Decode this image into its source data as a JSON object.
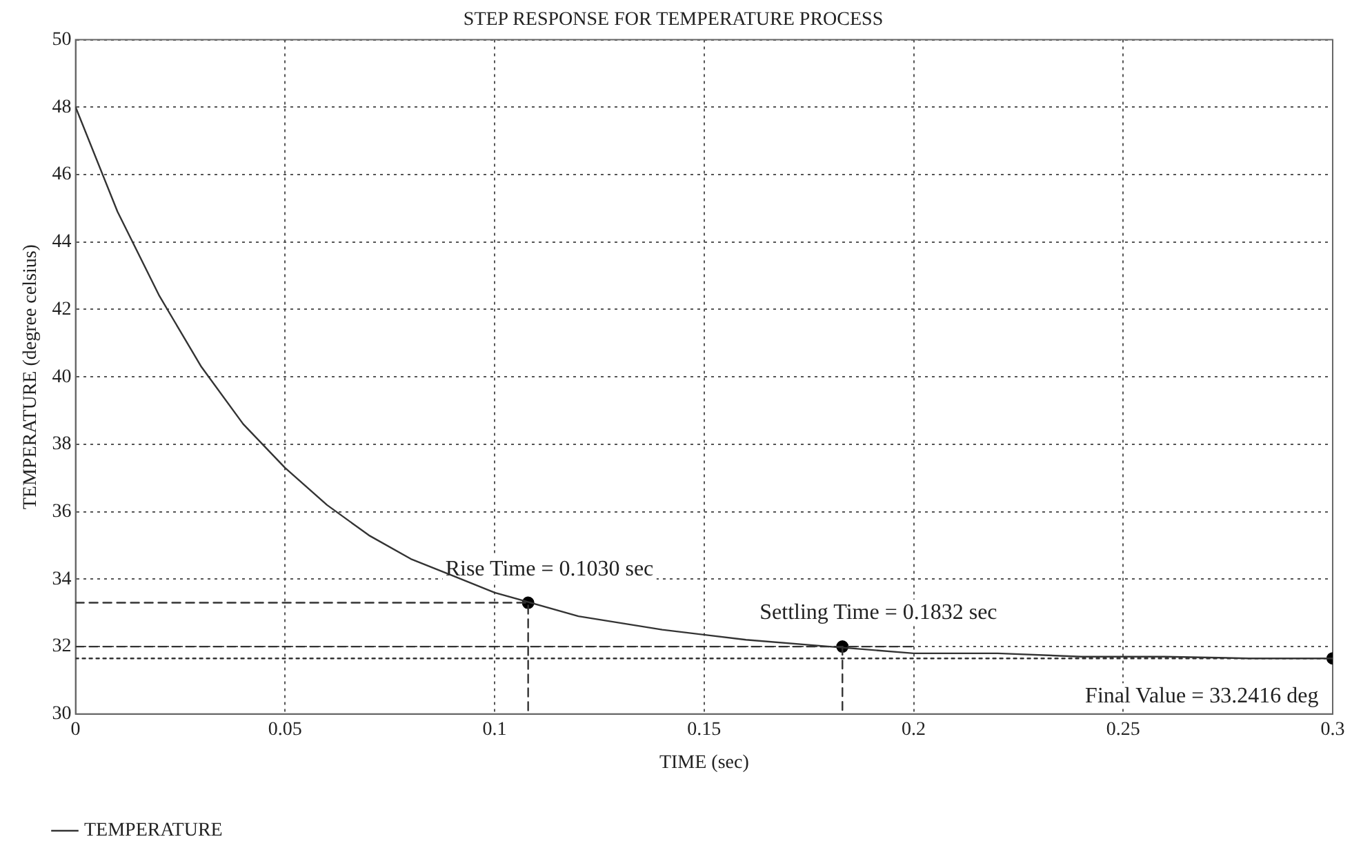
{
  "chart_data": {
    "type": "line",
    "title": "STEP RESPONSE FOR TEMPERATURE PROCESS",
    "xlabel": "TIME (sec)",
    "ylabel": "TEMPERATURE (degree celsius)",
    "xlim": [
      0,
      0.3
    ],
    "xticks": [
      0,
      0.05,
      0.1,
      0.15,
      0.2,
      0.25,
      0.3
    ],
    "ylim": [
      30,
      50
    ],
    "yticks": [
      30,
      32,
      34,
      36,
      38,
      40,
      42,
      44,
      46,
      48,
      50
    ],
    "grid": true,
    "legend": "bottom",
    "marker": "none",
    "line_style": "solid",
    "series": [
      {
        "name": "TEMPERATURE",
        "color": "#333333",
        "x": [
          0,
          0.01,
          0.02,
          0.03,
          0.04,
          0.05,
          0.06,
          0.07,
          0.08,
          0.09,
          0.1,
          0.12,
          0.14,
          0.16,
          0.18,
          0.2,
          0.22,
          0.24,
          0.26,
          0.28,
          0.3
        ],
        "values": [
          48.0,
          44.9,
          42.4,
          40.3,
          38.6,
          37.3,
          36.2,
          35.3,
          34.6,
          34.1,
          33.6,
          32.9,
          32.5,
          32.2,
          32.0,
          31.8,
          31.8,
          31.7,
          31.7,
          31.65,
          31.65
        ]
      },
      {
        "type": "line",
        "line_style": "dashed",
        "color": "#333333",
        "x": [
          0,
          0.108,
          0.108
        ],
        "values": [
          33.3,
          33.3,
          30
        ]
      },
      {
        "type": "line",
        "line_style": "dashed",
        "color": "#333333",
        "x": [
          0,
          0.2
        ],
        "values": [
          32.0,
          32.0
        ]
      },
      {
        "type": "line",
        "line_style": "dashed",
        "color": "#333333",
        "x": [
          0.183,
          0.183
        ],
        "values": [
          32.0,
          30
        ]
      },
      {
        "type": "line",
        "line_style": "dotted",
        "color": "#333333",
        "x": [
          0,
          0.3
        ],
        "values": [
          31.65,
          31.65
        ]
      },
      {
        "type": "scatter",
        "marker": "circle",
        "color": "#000000",
        "x": [
          0.108,
          0.183,
          0.3
        ],
        "values": [
          33.3,
          32.0,
          31.65
        ]
      }
    ],
    "annotations": [
      {
        "text": "Rise Time = 0.1030 sec",
        "x": 0.108,
        "y": 33.3
      },
      {
        "text": "Settling Time = 0.1832 sec",
        "x": 0.183,
        "y": 32.0
      },
      {
        "text": "Final Value = 33.2416 deg",
        "x": 0.3,
        "y": 31.65
      }
    ]
  }
}
